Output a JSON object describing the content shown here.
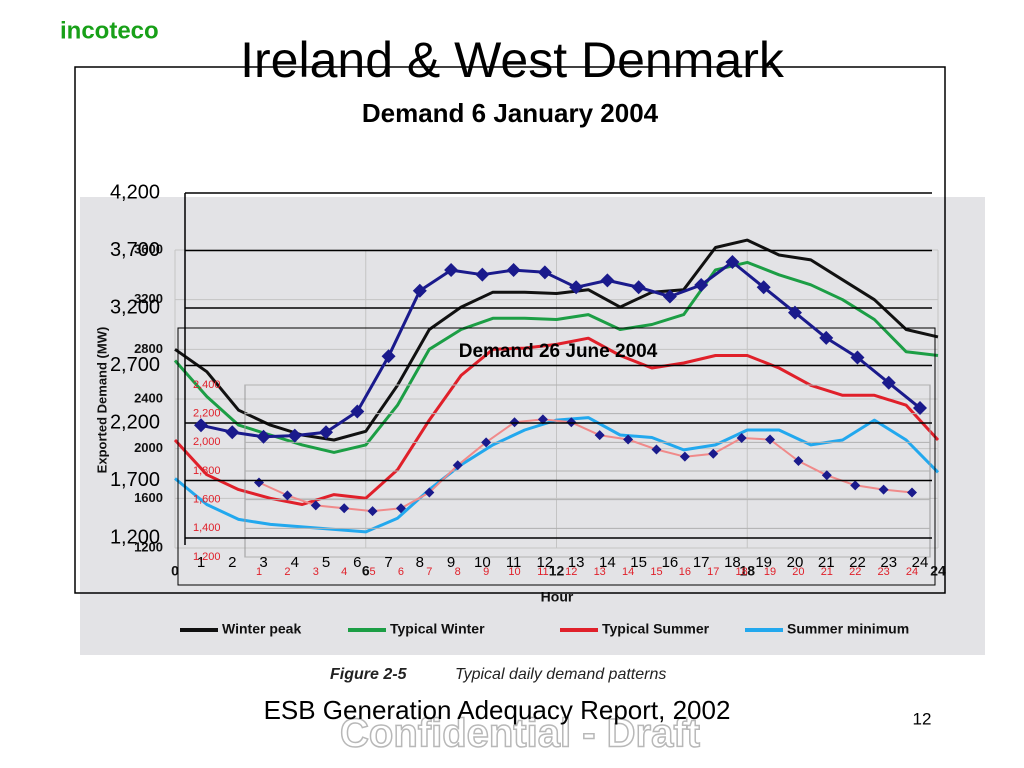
{
  "header": {
    "brand": "incoteco",
    "title": "Ireland & West Denmark"
  },
  "chart_data": [
    {
      "type": "line",
      "ylabel": "Exported Demand (MW)",
      "xlabel": "Hour",
      "caption_label": "Figure 2-5",
      "caption": "Typical daily demand patterns",
      "x": [
        0,
        1,
        2,
        3,
        4,
        5,
        6,
        7,
        8,
        9,
        10,
        11,
        12,
        13,
        14,
        15,
        16,
        17,
        18,
        19,
        20,
        21,
        22,
        23,
        24
      ],
      "xlim": [
        0,
        24
      ],
      "xticks": [
        0,
        6,
        12,
        18,
        24
      ],
      "ylim": [
        1200,
        3600
      ],
      "yticks": [
        1200,
        1600,
        2000,
        2400,
        2800,
        3200,
        3600
      ],
      "grid": true,
      "legend": "bottom",
      "series": [
        {
          "name": "Winter peak",
          "color": "#111111",
          "values": [
            2800,
            2620,
            2310,
            2190,
            2110,
            2070,
            2140,
            2510,
            2960,
            3140,
            3260,
            3260,
            3250,
            3280,
            3140,
            3260,
            3280,
            3620,
            3680,
            3560,
            3520,
            3360,
            3200,
            2960,
            2900
          ]
        },
        {
          "name": "Typical Winter",
          "color": "#1c9e45",
          "values": [
            2710,
            2420,
            2190,
            2110,
            2030,
            1970,
            2030,
            2350,
            2800,
            2960,
            3050,
            3050,
            3040,
            3080,
            2960,
            3000,
            3080,
            3440,
            3500,
            3400,
            3320,
            3200,
            3040,
            2780,
            2750
          ]
        },
        {
          "name": "Typical Summer",
          "color": "#e0202a",
          "values": [
            2070,
            1790,
            1670,
            1600,
            1550,
            1630,
            1600,
            1830,
            2230,
            2590,
            2800,
            2810,
            2840,
            2890,
            2750,
            2650,
            2690,
            2750,
            2750,
            2650,
            2510,
            2430,
            2430,
            2350,
            2070
          ]
        },
        {
          "name": "Summer minimum",
          "color": "#22a8ee",
          "values": [
            1760,
            1550,
            1430,
            1390,
            1370,
            1350,
            1330,
            1440,
            1670,
            1870,
            2030,
            2150,
            2230,
            2250,
            2110,
            2090,
            1990,
            2030,
            2150,
            2150,
            2030,
            2070,
            2230,
            2070,
            1810
          ]
        }
      ]
    },
    {
      "type": "line",
      "title": "Demand 26 June 2004",
      "categories": [
        "1",
        "2",
        "3",
        "4",
        "5",
        "6",
        "7",
        "8",
        "9",
        "10",
        "11",
        "12",
        "13",
        "14",
        "15",
        "16",
        "17",
        "18",
        "19",
        "20",
        "21",
        "22",
        "23",
        "24"
      ],
      "ylim": [
        1200,
        2400
      ],
      "yticks": [
        {
          "value": 1200,
          "label": "1,200"
        },
        {
          "value": 1400,
          "label": "1,400"
        },
        {
          "value": 1600,
          "label": "1,600"
        },
        {
          "value": 1800,
          "label": "1,800"
        },
        {
          "value": 2000,
          "label": "2,000"
        },
        {
          "value": 2200,
          "label": "2,200"
        },
        {
          "value": 2400,
          "label": "2,400"
        }
      ],
      "grid": true,
      "color": "#f08a8a",
      "marker_color": "#1a1a8c",
      "values": [
        1720,
        1630,
        1560,
        1540,
        1520,
        1540,
        1650,
        1840,
        2000,
        2140,
        2160,
        2140,
        2050,
        2020,
        1950,
        1900,
        1920,
        2030,
        2020,
        1870,
        1770,
        1700,
        1670,
        1650
      ]
    },
    {
      "type": "line",
      "title": "Demand 6 January 2004",
      "categories": [
        "1",
        "2",
        "3",
        "4",
        "5",
        "6",
        "7",
        "8",
        "9",
        "10",
        "11",
        "12",
        "13",
        "14",
        "15",
        "16",
        "17",
        "18",
        "19",
        "20",
        "21",
        "22",
        "23",
        "24"
      ],
      "ylim": [
        1200,
        4200
      ],
      "yticks": [
        {
          "value": 1200,
          "label": "1,200"
        },
        {
          "value": 1700,
          "label": "1,700"
        },
        {
          "value": 2200,
          "label": "2,200"
        },
        {
          "value": 2700,
          "label": "2,700"
        },
        {
          "value": 3200,
          "label": "3,200"
        },
        {
          "value": 3700,
          "label": "3,700"
        },
        {
          "value": 4200,
          "label": "4,200"
        }
      ],
      "grid": true,
      "color": "#1a1a8c",
      "marker_color": "#1a1a8c",
      "values": [
        2180,
        2120,
        2080,
        2090,
        2120,
        2300,
        2780,
        3350,
        3530,
        3490,
        3530,
        3510,
        3380,
        3440,
        3380,
        3300,
        3400,
        3600,
        3380,
        3160,
        2940,
        2770,
        2550,
        2330
      ]
    }
  ],
  "footer": {
    "source": "ESB Generation Adequacy Report, 2002",
    "page_number": "12",
    "watermark": "Confidential - Draft"
  }
}
